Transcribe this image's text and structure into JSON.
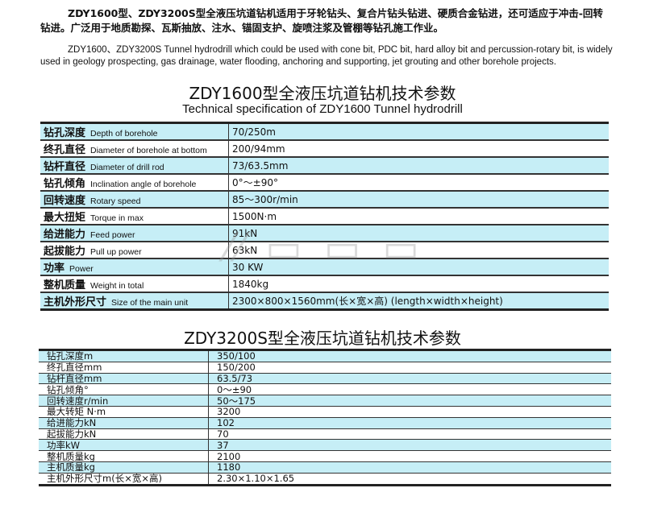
{
  "intro": {
    "zh": "ZDY1600型、ZDY3200S型全液压坑道钻机适用于牙轮钻头、复合片钻头钻进、硬质合金钻进，还可适应于冲击-回转钻进。广泛用于地质勘探、瓦斯抽放、注水、锚固支护、旋喷注浆及管棚等钻孔施工作业。",
    "en": "ZDY1600、ZDY3200S Tunnel hydrodrill which could be used with cone bit, PDC bit, hard alloy bit and percussion-rotary bit, is widely used in geology prospecting, gas drainage, water flooding, anchoring and supporting, jet grouting and other borehole projects."
  },
  "table1": {
    "title": "ZDY1600型全液压坑道钻机技术参数",
    "subtitle": "Technical specification of ZDY1600 Tunnel hydrodrill",
    "rows": [
      {
        "zh": "钻孔深度",
        "en": "Depth of borehole",
        "value": "70/250m"
      },
      {
        "zh": "终孔直径",
        "en": "Diameter of borehole at bottom",
        "value": "200/94mm"
      },
      {
        "zh": "钻杆直径",
        "en": "Diameter of drill rod",
        "value": "73/63.5mm"
      },
      {
        "zh": "钻孔倾角",
        "en": "Inclination angle of borehole",
        "value": "0°～±90°"
      },
      {
        "zh": "回转速度",
        "en": "Rotary speed",
        "value": "85～300r/min"
      },
      {
        "zh": "最大扭矩",
        "en": "Torque in max",
        "value": "1500N·m"
      },
      {
        "zh": "给进能力",
        "en": "Feed power",
        "value": "91kN"
      },
      {
        "zh": "起拔能力",
        "en": "Pull up power",
        "value": "63kN"
      },
      {
        "zh": "功率",
        "en": "Power",
        "value": "30 KW"
      },
      {
        "zh": "整机质量",
        "en": "Weight in total",
        "value": "1840kg"
      },
      {
        "zh": "主机外形尺寸",
        "en": "Size of the main unit",
        "value": "2300×800×1560mm(长×宽×高)  (length×width×height)"
      }
    ]
  },
  "table2": {
    "title": "ZDY3200S型全液压坑道钻机技术参数",
    "rows": [
      {
        "k": "钻孔深度m",
        "value": "350/100"
      },
      {
        "k": "终孔直径mm",
        "value": "150/200"
      },
      {
        "k": "钻杆直径mm",
        "value": "63.5/73"
      },
      {
        "k": "钻孔倾角°",
        "value": "0～±90"
      },
      {
        "k": "回转速度r/min",
        "value": "50～175"
      },
      {
        "k": "最大转矩 N·m",
        "value": "3200"
      },
      {
        "k": "给进能力kN",
        "value": "102"
      },
      {
        "k": "起拔能力kN",
        "value": "70"
      },
      {
        "k": "功率kW",
        "value": "37"
      },
      {
        "k": "整机质量kg",
        "value": "2100"
      },
      {
        "k": "主机质量kg",
        "value": "1180"
      },
      {
        "k": "主机外形尺寸m(长×宽×高)",
        "value": "2.30×1.10×1.65"
      }
    ]
  },
  "colors": {
    "row_highlight": "#c6eef6"
  }
}
